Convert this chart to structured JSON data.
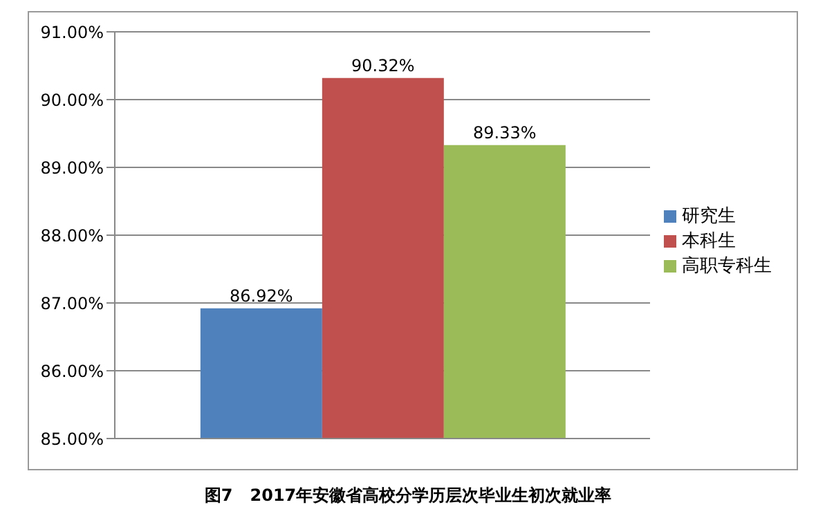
{
  "chart_data": {
    "type": "bar",
    "title": "图7   2017年安徽省高校分学历层次毕业生初次就业率",
    "categories": [
      null
    ],
    "series": [
      {
        "name": "研究生",
        "color": "#4f81bd",
        "values": [
          86.92
        ],
        "value_labels": [
          "86.92%"
        ]
      },
      {
        "name": "本科生",
        "color": "#c0504d",
        "values": [
          90.32
        ],
        "value_labels": [
          "90.32%"
        ]
      },
      {
        "name": "高职专科生",
        "color": "#9bbb59",
        "values": [
          89.33
        ],
        "value_labels": [
          "89.33%"
        ]
      }
    ],
    "ylim": [
      85,
      91
    ],
    "yticks": [
      {
        "value": 85,
        "label": "85.00%"
      },
      {
        "value": 86,
        "label": "86.00%"
      },
      {
        "value": 87,
        "label": "87.00%"
      },
      {
        "value": 88,
        "label": "88.00%"
      },
      {
        "value": 89,
        "label": "89.00%"
      },
      {
        "value": 90,
        "label": "90.00%"
      },
      {
        "value": 91,
        "label": "91.00%"
      }
    ],
    "grid": "y",
    "legend": "right"
  }
}
